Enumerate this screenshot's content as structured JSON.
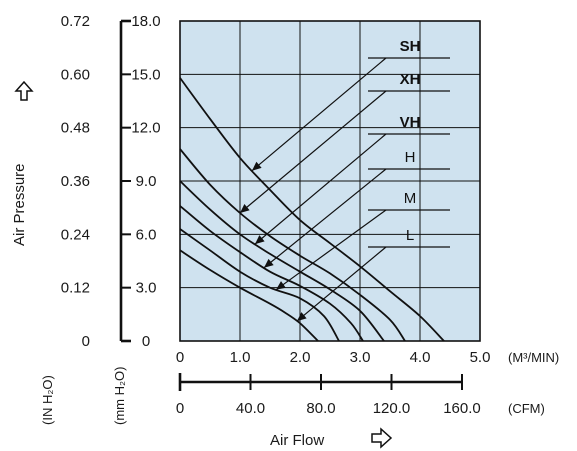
{
  "chart_data": {
    "type": "line",
    "colors": {
      "plot_background": "#cfe2ef",
      "line": "#111111"
    },
    "x": {
      "label": "Air Flow",
      "arrow_icon": "hollow-right-arrow-icon",
      "primary": {
        "ticks": [
          "0",
          "1.0",
          "2.0",
          "3.0",
          "4.0",
          "5.0"
        ],
        "values": [
          0,
          1,
          2,
          3,
          4,
          5
        ],
        "unit": "(M³/MIN)"
      },
      "secondary": {
        "ticks": [
          "0",
          "40.0",
          "80.0",
          "120.0",
          "160.0"
        ],
        "values": [
          0,
          40,
          80,
          120,
          160
        ],
        "unit": "(CFM)"
      },
      "range": [
        0,
        5
      ]
    },
    "y": {
      "label": "Air Pressure",
      "arrow_icon": "hollow-up-arrow-icon",
      "primary": {
        "ticks": [
          "0",
          "3.0",
          "6.0",
          "9.0",
          "12.0",
          "15.0",
          "18.0"
        ],
        "values": [
          0,
          3,
          6,
          9,
          12,
          15,
          18
        ],
        "unit": "(mm H₂O)"
      },
      "secondary": {
        "ticks": [
          "0",
          "0.12",
          "0.24",
          "0.36",
          "0.48",
          "0.60",
          "0.72"
        ],
        "unit": "(IN H₂O)"
      },
      "range": [
        0,
        18
      ]
    },
    "grid": true,
    "series": [
      {
        "name": "SH",
        "bold": true,
        "points": [
          [
            0,
            14.8
          ],
          [
            0.5,
            12.5
          ],
          [
            1.0,
            10.3
          ],
          [
            1.5,
            8.5
          ],
          [
            2.0,
            6.8
          ],
          [
            2.5,
            5.5
          ],
          [
            3.0,
            4.2
          ],
          [
            3.5,
            2.8
          ],
          [
            4.0,
            1.4
          ],
          [
            4.4,
            0
          ]
        ]
      },
      {
        "name": "XH",
        "bold": true,
        "points": [
          [
            0,
            10.8
          ],
          [
            0.5,
            8.8
          ],
          [
            1.0,
            7.2
          ],
          [
            1.5,
            5.9
          ],
          [
            2.0,
            4.8
          ],
          [
            2.5,
            3.8
          ],
          [
            3.0,
            2.6
          ],
          [
            3.5,
            1.2
          ],
          [
            3.75,
            0
          ]
        ]
      },
      {
        "name": "VH",
        "bold": true,
        "points": [
          [
            0,
            9.0
          ],
          [
            0.5,
            7.4
          ],
          [
            1.0,
            6.0
          ],
          [
            1.5,
            4.9
          ],
          [
            2.0,
            3.9
          ],
          [
            2.5,
            2.9
          ],
          [
            3.0,
            1.7
          ],
          [
            3.4,
            0
          ]
        ]
      },
      {
        "name": "H",
        "bold": false,
        "points": [
          [
            0,
            7.6
          ],
          [
            0.5,
            6.2
          ],
          [
            1.0,
            5.0
          ],
          [
            1.5,
            3.9
          ],
          [
            2.0,
            3.1
          ],
          [
            2.5,
            2.1
          ],
          [
            2.85,
            1.0
          ],
          [
            3.05,
            0
          ]
        ]
      },
      {
        "name": "M",
        "bold": false,
        "points": [
          [
            0,
            6.3
          ],
          [
            0.5,
            5.1
          ],
          [
            1.0,
            3.9
          ],
          [
            1.5,
            3.0
          ],
          [
            2.0,
            2.4
          ],
          [
            2.4,
            1.4
          ],
          [
            2.65,
            0
          ]
        ]
      },
      {
        "name": "L",
        "bold": false,
        "points": [
          [
            0,
            5.1
          ],
          [
            0.5,
            4.0
          ],
          [
            1.0,
            3.0
          ],
          [
            1.5,
            2.1
          ],
          [
            1.75,
            1.6
          ],
          [
            2.0,
            1.0
          ],
          [
            2.3,
            0
          ]
        ]
      }
    ]
  }
}
